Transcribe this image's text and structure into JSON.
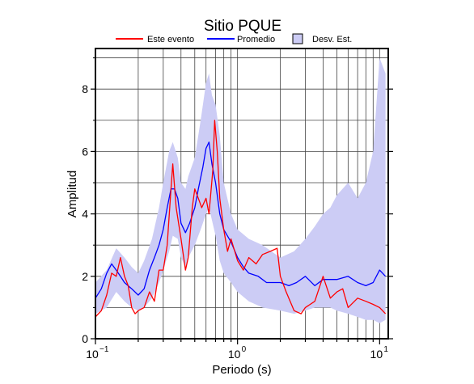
{
  "chart_data": {
    "type": "line",
    "title": "Sitio PQUE",
    "xlabel": "Periodo (s)",
    "ylabel": "Amplitud",
    "x_scale": "log",
    "xlim": [
      0.1,
      11.5
    ],
    "ylim": [
      0,
      9.3
    ],
    "x_ticks": [
      0.1,
      1,
      10
    ],
    "x_tick_labels": [
      "10",
      "10",
      "10"
    ],
    "x_tick_exponents": [
      "−1",
      "0",
      "1"
    ],
    "y_ticks": [
      0,
      2,
      4,
      6,
      8
    ],
    "y_tick_labels": [
      "0",
      "2",
      "4",
      "6",
      "8"
    ],
    "grid": "vertical log gridlines and horizontal lines at each unit",
    "legend_position": "top",
    "legend": [
      {
        "label": "Este evento",
        "kind": "line",
        "color": "#ff0000"
      },
      {
        "label": "Promedio",
        "kind": "line",
        "color": "#0000ff"
      },
      {
        "label": "Desv. Est.",
        "kind": "area",
        "color": "#ccccf5"
      }
    ],
    "series": [
      {
        "name": "Este evento",
        "color": "#ff0000",
        "x": [
          0.1,
          0.11,
          0.12,
          0.13,
          0.14,
          0.15,
          0.16,
          0.17,
          0.18,
          0.19,
          0.2,
          0.22,
          0.24,
          0.26,
          0.28,
          0.3,
          0.32,
          0.34,
          0.35,
          0.37,
          0.4,
          0.43,
          0.45,
          0.48,
          0.5,
          0.53,
          0.56,
          0.6,
          0.63,
          0.67,
          0.69,
          0.72,
          0.75,
          0.8,
          0.85,
          0.9,
          1.0,
          1.1,
          1.2,
          1.35,
          1.5,
          1.7,
          1.9,
          2.0,
          2.2,
          2.5,
          2.8,
          3.0,
          3.5,
          4.0,
          4.5,
          5.0,
          5.5,
          6.0,
          7.0,
          8.0,
          9.0,
          10.0,
          11.0
        ],
        "y": [
          0.7,
          0.9,
          1.4,
          2.1,
          2.0,
          2.6,
          2.0,
          1.7,
          1.0,
          0.8,
          0.9,
          1.0,
          1.5,
          1.2,
          2.2,
          2.2,
          3.0,
          4.8,
          5.6,
          4.2,
          3.2,
          2.2,
          2.6,
          4.2,
          4.8,
          4.5,
          4.2,
          4.5,
          4.0,
          5.4,
          7.0,
          6.0,
          4.5,
          3.5,
          2.8,
          3.2,
          2.5,
          2.2,
          2.6,
          2.4,
          2.7,
          2.8,
          2.9,
          2.0,
          1.5,
          0.9,
          0.8,
          1.0,
          1.2,
          2.0,
          1.3,
          1.5,
          1.6,
          1.0,
          1.3,
          1.2,
          1.1,
          1.0,
          0.8
        ]
      },
      {
        "name": "Promedio",
        "color": "#0000ff",
        "x": [
          0.1,
          0.11,
          0.12,
          0.13,
          0.14,
          0.15,
          0.16,
          0.18,
          0.2,
          0.22,
          0.24,
          0.26,
          0.28,
          0.3,
          0.32,
          0.34,
          0.36,
          0.38,
          0.4,
          0.43,
          0.46,
          0.5,
          0.53,
          0.57,
          0.6,
          0.63,
          0.66,
          0.7,
          0.75,
          0.8,
          0.9,
          1.0,
          1.1,
          1.2,
          1.4,
          1.6,
          1.8,
          2.0,
          2.3,
          2.6,
          3.0,
          3.5,
          4.0,
          5.0,
          6.0,
          7.0,
          8.0,
          9.0,
          10.0,
          11.0
        ],
        "y": [
          1.3,
          1.6,
          2.1,
          2.4,
          2.2,
          2.0,
          1.8,
          1.6,
          1.4,
          1.6,
          2.2,
          2.6,
          3.0,
          3.5,
          4.2,
          4.8,
          4.8,
          4.5,
          3.7,
          3.4,
          3.7,
          4.2,
          4.8,
          5.5,
          6.1,
          6.3,
          5.6,
          5.0,
          4.0,
          3.5,
          3.1,
          2.6,
          2.3,
          2.1,
          2.0,
          1.8,
          1.8,
          1.8,
          1.7,
          1.8,
          2.0,
          1.7,
          1.9,
          1.9,
          2.0,
          1.8,
          1.7,
          1.8,
          2.2,
          2.0
        ]
      }
    ],
    "band": {
      "name": "Desv. Est.",
      "color": "#ccccf5",
      "x": [
        0.1,
        0.12,
        0.14,
        0.16,
        0.18,
        0.2,
        0.22,
        0.25,
        0.28,
        0.3,
        0.33,
        0.35,
        0.38,
        0.4,
        0.43,
        0.45,
        0.5,
        0.55,
        0.6,
        0.63,
        0.66,
        0.7,
        0.75,
        0.8,
        0.9,
        1.0,
        1.2,
        1.5,
        2.0,
        2.5,
        3.0,
        3.5,
        4.0,
        4.5,
        5.0,
        6.0,
        7.0,
        8.0,
        9.0,
        10.0,
        11.0
      ],
      "upper": [
        1.8,
        2.2,
        2.9,
        2.6,
        2.3,
        2.1,
        2.5,
        3.2,
        4.2,
        5.0,
        6.0,
        6.3,
        5.8,
        5.0,
        4.8,
        5.2,
        5.8,
        7.0,
        8.2,
        8.5,
        7.8,
        7.5,
        6.5,
        5.0,
        4.0,
        3.5,
        3.2,
        3.0,
        2.6,
        2.8,
        3.2,
        3.6,
        4.0,
        4.2,
        4.6,
        5.0,
        4.5,
        5.0,
        6.0,
        9.0,
        8.5
      ],
      "lower": [
        0.8,
        1.0,
        1.5,
        1.2,
        1.0,
        0.9,
        1.0,
        1.3,
        1.8,
        2.2,
        2.8,
        3.3,
        3.2,
        2.6,
        2.3,
        2.6,
        3.0,
        3.5,
        4.0,
        4.2,
        3.8,
        3.3,
        2.5,
        2.1,
        1.8,
        1.5,
        1.2,
        1.0,
        0.9,
        0.8,
        0.9,
        1.0,
        1.0,
        1.0,
        0.9,
        0.8,
        0.7,
        0.6,
        0.6,
        0.5,
        0.6
      ]
    }
  }
}
